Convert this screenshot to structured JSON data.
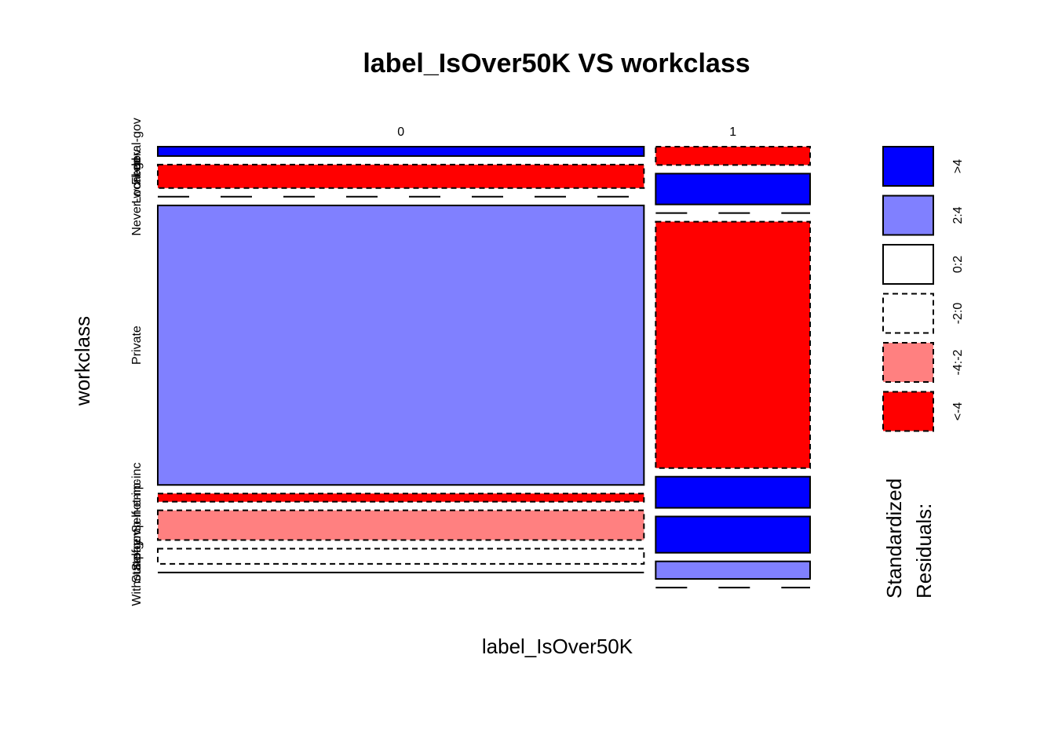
{
  "chart_data": {
    "type": "mosaic",
    "title": "label_IsOver50K VS workclass",
    "xlabel": "label_IsOver50K",
    "ylabel": "workclass",
    "columns": [
      "0",
      "1"
    ],
    "column_proportions": [
      0.759,
      0.241
    ],
    "rows": [
      "Federal-gov",
      "Local-gov",
      "Never-worked",
      "Private",
      "Self-emp-inc",
      "Self-emp-not-inc",
      "State-gov",
      "Without-pay"
    ],
    "row_label_texts": [
      "Federal-gov",
      "Local-gov",
      "Never-worked",
      "Private",
      "Self-emp-inc",
      "Self-emp-not-inc",
      "State-gov",
      "Without-pay"
    ],
    "conditional_proportions": {
      "0": [
        0.024,
        0.06,
        0.0003,
        0.717,
        0.021,
        0.076,
        0.039,
        0.0006
      ],
      "1": [
        0.047,
        0.079,
        0.0,
        0.632,
        0.08,
        0.093,
        0.045,
        0.0
      ]
    },
    "residual_class": {
      "0": [
        ">4",
        "<-4",
        "-2:0",
        "2:4",
        "<-4",
        "-4:-2",
        "-2:0",
        "0:2"
      ],
      "1": [
        "<-4",
        ">4",
        "-2:0",
        "<-4",
        ">4",
        ">4",
        "2:4",
        "-2:0"
      ]
    },
    "legend": {
      "title": "Standardized\nResiduals:",
      "title_lines": [
        "Standardized",
        "Residuals:"
      ],
      "position": "right",
      "items": [
        {
          "label": ">4",
          "fill": "#0000ff",
          "dashed": false
        },
        {
          "label": "2:4",
          "fill": "#8080ff",
          "dashed": false
        },
        {
          "label": "0:2",
          "fill": "#ffffff",
          "dashed": false
        },
        {
          "label": "-2:0",
          "fill": "#ffffff",
          "dashed": true
        },
        {
          "label": "-4:-2",
          "fill": "#ff8080",
          "dashed": true
        },
        {
          "label": "<-4",
          "fill": "#ff0000",
          "dashed": true
        }
      ]
    }
  }
}
